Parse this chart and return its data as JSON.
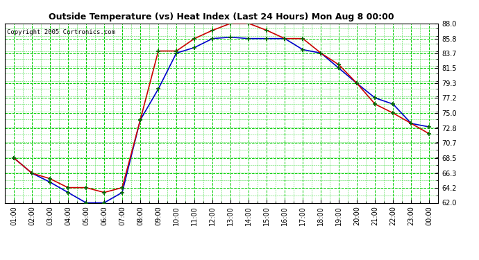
{
  "title": "Outside Temperature (vs) Heat Index (Last 24 Hours) Mon Aug 8 00:00",
  "copyright": "Copyright 2005 Curtronics.com",
  "x_labels": [
    "01:00",
    "02:00",
    "03:00",
    "04:00",
    "05:00",
    "06:00",
    "07:00",
    "08:00",
    "09:00",
    "10:00",
    "11:00",
    "12:00",
    "13:00",
    "14:00",
    "15:00",
    "16:00",
    "17:00",
    "18:00",
    "19:00",
    "20:00",
    "21:00",
    "22:00",
    "23:00",
    "00:00"
  ],
  "blue_y": [
    68.5,
    66.3,
    65.0,
    63.5,
    62.0,
    62.0,
    63.5,
    74.0,
    78.5,
    83.7,
    84.5,
    85.8,
    86.0,
    85.8,
    85.8,
    85.8,
    84.2,
    83.7,
    81.5,
    79.3,
    77.2,
    76.3,
    73.5,
    73.0
  ],
  "red_y": [
    68.5,
    66.3,
    65.5,
    64.2,
    64.2,
    63.5,
    64.2,
    74.0,
    84.0,
    84.0,
    85.8,
    87.0,
    88.0,
    88.0,
    87.0,
    85.8,
    85.8,
    83.7,
    82.0,
    79.3,
    76.3,
    75.0,
    73.5,
    72.0
  ],
  "ylim": [
    62.0,
    88.0
  ],
  "yticks": [
    62.0,
    64.2,
    66.3,
    68.5,
    70.7,
    72.8,
    75.0,
    77.2,
    79.3,
    81.5,
    83.7,
    85.8,
    88.0
  ],
  "bg_color": "#ffffff",
  "plot_bg": "#ffffff",
  "grid_color": "#00cc00",
  "blue_color": "#0000cc",
  "red_color": "#cc0000",
  "marker_color": "#006600"
}
